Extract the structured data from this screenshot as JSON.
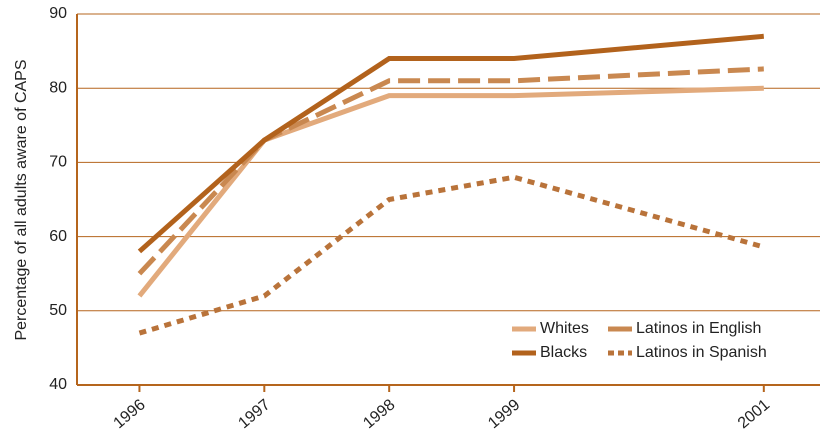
{
  "chart_data": {
    "type": "line",
    "y_label": "Percentage of all adults aware of CAPS",
    "x": [
      1996,
      1997,
      1998,
      1999,
      2001
    ],
    "xlim": [
      1995.5,
      2001.45
    ],
    "xticks": [
      1996,
      1997,
      1998,
      1999,
      2001
    ],
    "ylim": [
      40,
      90
    ],
    "yticks": [
      40,
      50,
      60,
      70,
      80,
      90
    ],
    "grid": true,
    "legend": "lower right",
    "series": [
      {
        "name": "Whites",
        "color": "#e2aa7c",
        "style": "solid",
        "values": [
          52,
          73,
          79,
          79,
          80
        ]
      },
      {
        "name": "Latinos in English",
        "color": "#c98850",
        "style": "dashed",
        "values": [
          55,
          73,
          81,
          81,
          82.6
        ]
      },
      {
        "name": "Blacks",
        "color": "#b2621c",
        "style": "solid",
        "values": [
          58,
          73,
          84,
          84,
          87
        ]
      },
      {
        "name": "Latinos in Spanish",
        "color": "#b9733a",
        "style": "dotted",
        "values": [
          47,
          52,
          65,
          68,
          58.6
        ]
      }
    ]
  }
}
